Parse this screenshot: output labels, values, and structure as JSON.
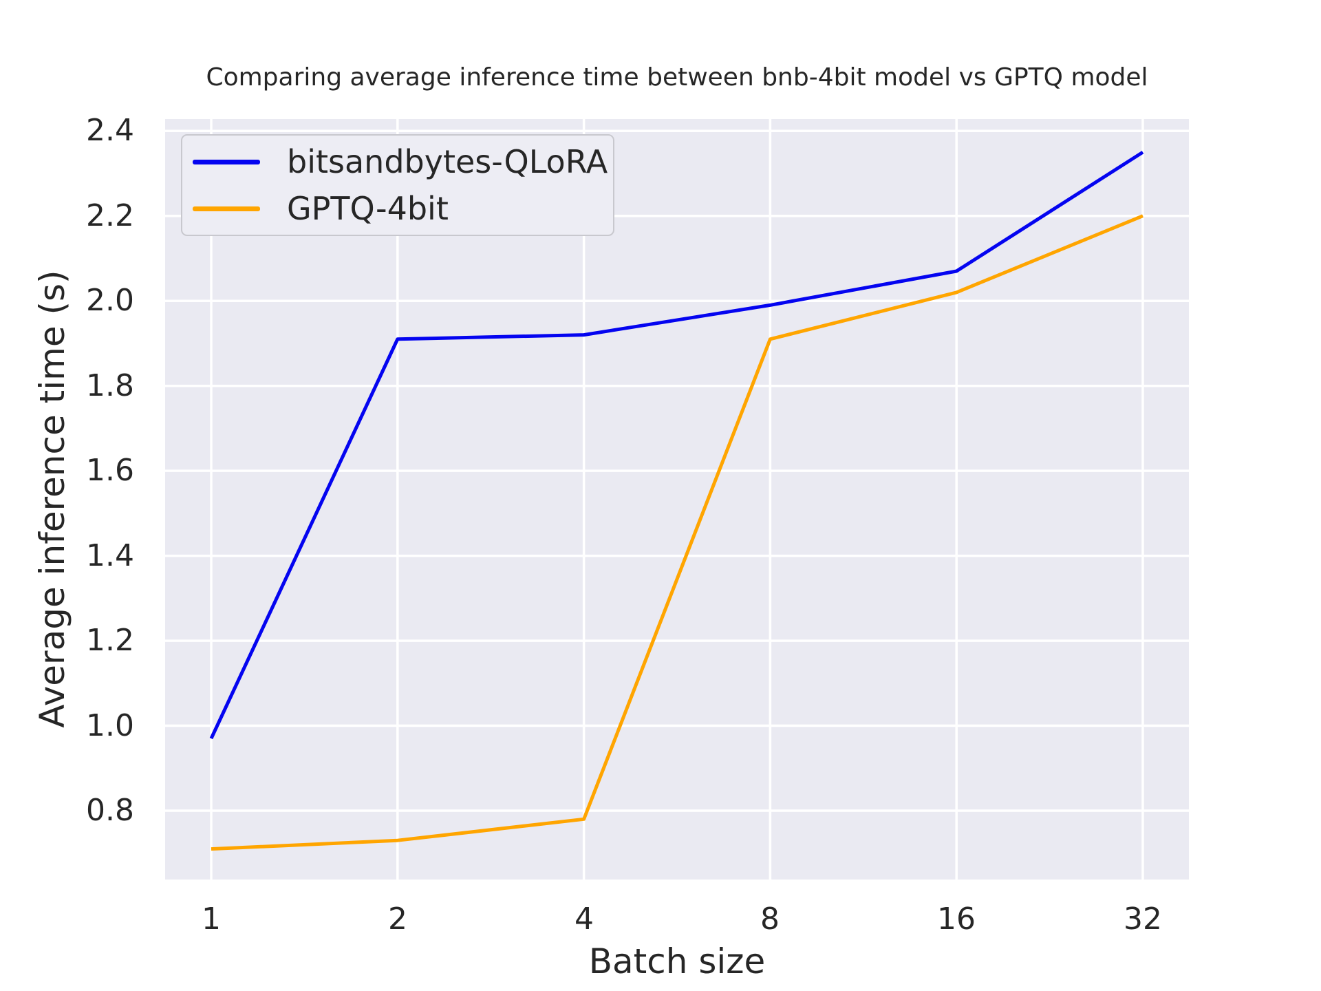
{
  "figure": {
    "background": "#ffffff",
    "plot_background": "#eaeaf2",
    "grid_color": "#ffffff",
    "text_color": "#262626",
    "legend_background": "#ededf4",
    "legend_border": "#c8c8ce"
  },
  "chart_data": {
    "type": "line",
    "title": "Comparing average inference time between bnb-4bit model vs GPTQ model",
    "xlabel": "Batch size",
    "ylabel": "Average inference time (s)",
    "x": [
      1,
      2,
      4,
      8,
      16,
      32
    ],
    "xtick_labels": [
      "1",
      "2",
      "4",
      "8",
      "16",
      "32"
    ],
    "ytick_labels": [
      "0.8",
      "1.0",
      "1.2",
      "1.4",
      "1.6",
      "1.8",
      "2.0",
      "2.2",
      "2.4"
    ],
    "ylim": [
      0.638,
      2.428
    ],
    "x_scale": "log2 values at evenly spaced positions",
    "grid": true,
    "legend_position": "upper-left",
    "series": [
      {
        "name": "bitsandbytes-QLoRA",
        "color": "#0404f0",
        "values": [
          0.97,
          1.91,
          1.92,
          1.99,
          2.07,
          2.35
        ]
      },
      {
        "name": "GPTQ-4bit",
        "color": "#ffa500",
        "values": [
          0.71,
          0.73,
          0.78,
          1.91,
          2.02,
          2.2
        ]
      }
    ]
  }
}
